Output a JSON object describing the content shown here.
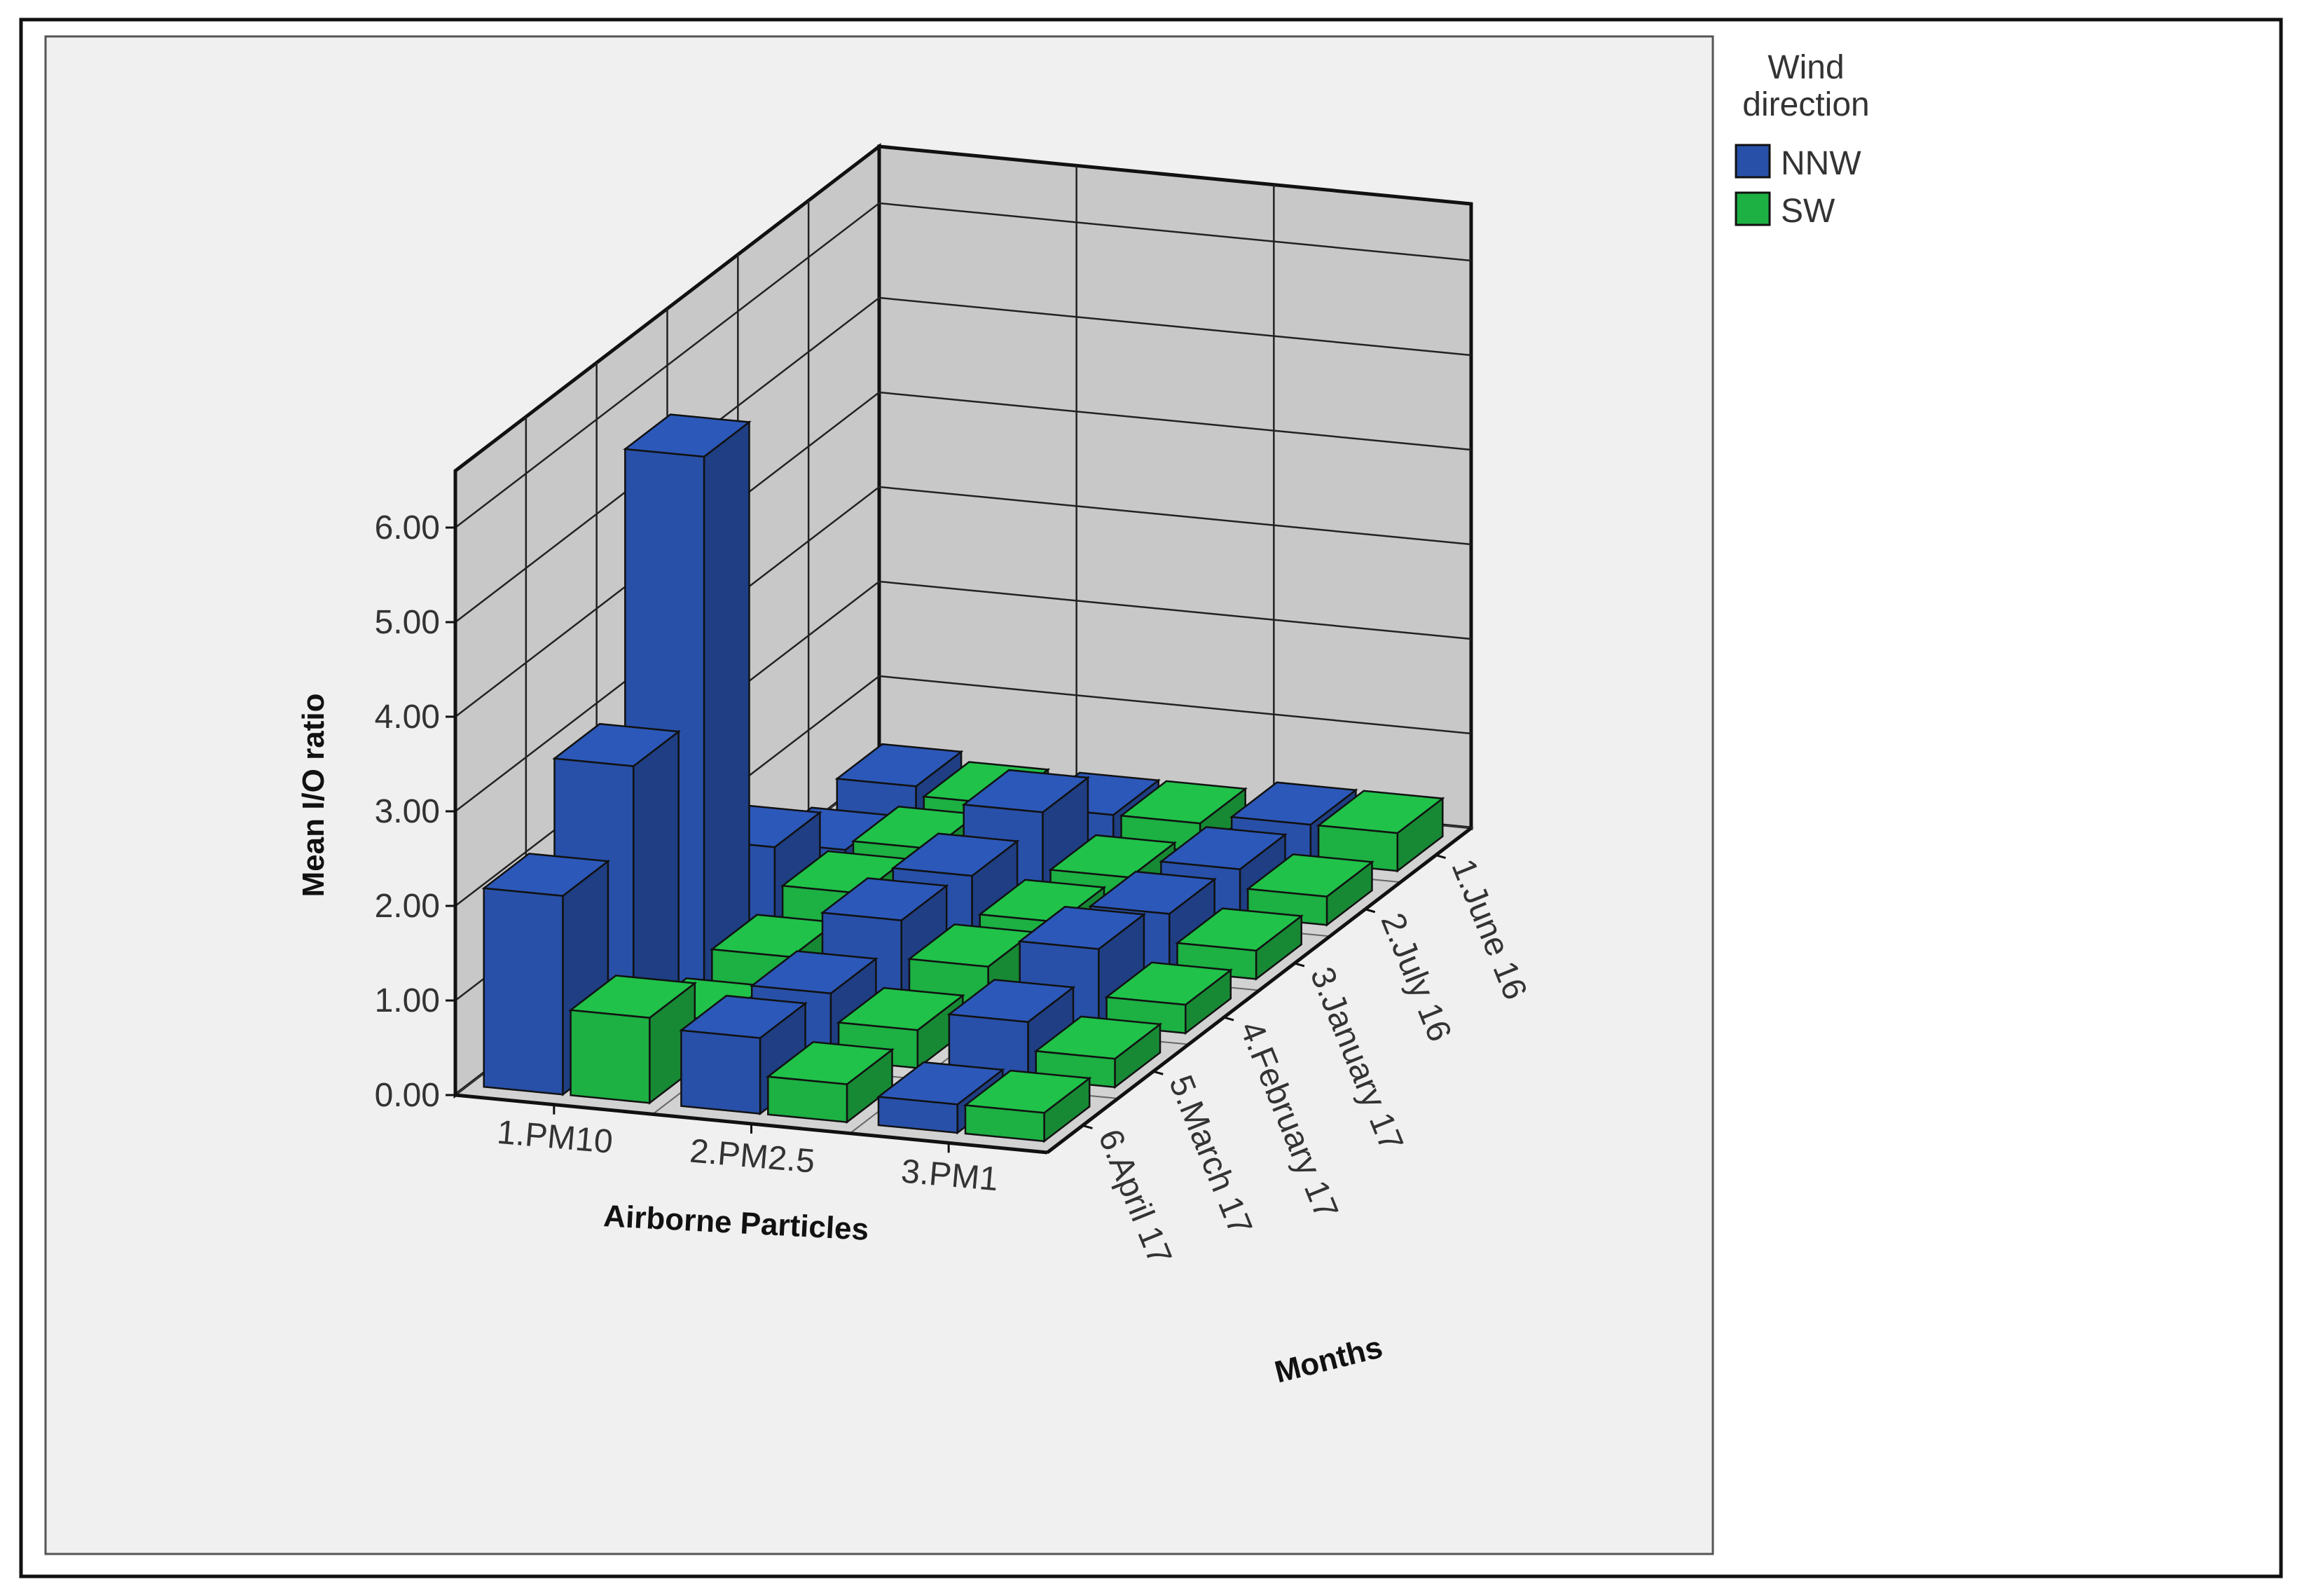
{
  "chart_data": {
    "type": "bar",
    "subtype": "3d-clustered",
    "title": "",
    "ylabel": "Mean I/O ratio",
    "xlabel": "Airborne Particles",
    "zlabel": "Months",
    "ylim": [
      0,
      6.6
    ],
    "y_ticks": [
      "0.00",
      "1.00",
      "2.00",
      "3.00",
      "4.00",
      "5.00",
      "6.00"
    ],
    "categories": [
      "1.PM10",
      "2.PM2.5",
      "3.PM1"
    ],
    "months": [
      "6.April 17",
      "5.March 17",
      "4.February 17",
      "3.January 17",
      "2.July 16",
      "1.June 16"
    ],
    "legend": {
      "title": "Wind direction",
      "position": "right"
    },
    "series": [
      {
        "name": "NNW",
        "color": "#2850a8",
        "values": [
          [
            2.1,
            2.9,
            5.6,
            0.9,
            0.3,
            0.4
          ],
          [
            0.8,
            0.7,
            0.9,
            0.8,
            0.9,
            0.3
          ],
          [
            0.3,
            0.6,
            0.8,
            0.6,
            0.5,
            0.4
          ]
        ]
      },
      {
        "name": "SW",
        "color": "#1db043",
        "values": [
          [
            0.9,
            0.3,
            0.4,
            0.5,
            0.4,
            0.3
          ],
          [
            0.4,
            0.4,
            0.5,
            0.4,
            0.3,
            0.3
          ],
          [
            0.3,
            0.3,
            0.3,
            0.3,
            0.3,
            0.4
          ]
        ]
      }
    ],
    "grid": true,
    "colors": {
      "wall": "#c8c8c8",
      "floor": "#d2d2d2",
      "background": "#f0f0f0"
    }
  }
}
